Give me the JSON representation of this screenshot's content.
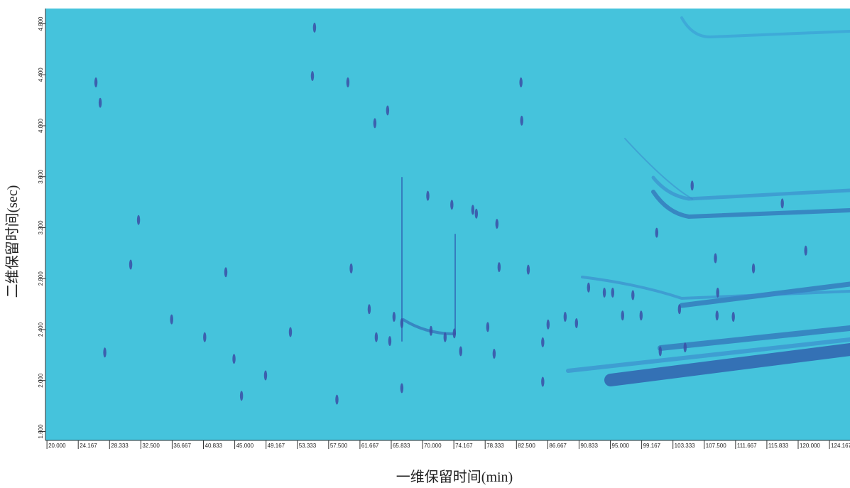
{
  "chart_data": {
    "type": "scatter",
    "xlabel": "一维保留时间(min)",
    "ylabel": "二维保留时间(sec)",
    "background": "#45c3dc",
    "color": "#3b4fa6",
    "xlim": [
      19.8,
      126.9
    ],
    "ylim": [
      1.53,
      4.92
    ],
    "xticks": [
      {
        "value": 20.0,
        "label": "20.000"
      },
      {
        "value": 24.167,
        "label": "24.167"
      },
      {
        "value": 28.333,
        "label": "28.333"
      },
      {
        "value": 32.5,
        "label": "32.500"
      },
      {
        "value": 36.667,
        "label": "36.667"
      },
      {
        "value": 40.833,
        "label": "40.833"
      },
      {
        "value": 45.0,
        "label": "45.000"
      },
      {
        "value": 49.167,
        "label": "49.167"
      },
      {
        "value": 53.333,
        "label": "53.333"
      },
      {
        "value": 57.5,
        "label": "57.500"
      },
      {
        "value": 61.667,
        "label": "61.667"
      },
      {
        "value": 65.833,
        "label": "65.833"
      },
      {
        "value": 70.0,
        "label": "70.000"
      },
      {
        "value": 74.167,
        "label": "74.167"
      },
      {
        "value": 78.333,
        "label": "78.333"
      },
      {
        "value": 82.5,
        "label": "82.500"
      },
      {
        "value": 86.667,
        "label": "86.667"
      },
      {
        "value": 90.833,
        "label": "90.833"
      },
      {
        "value": 95.0,
        "label": "95.000"
      },
      {
        "value": 99.167,
        "label": "99.167"
      },
      {
        "value": 103.333,
        "label": "103.333"
      },
      {
        "value": 107.5,
        "label": "107.500"
      },
      {
        "value": 111.667,
        "label": "111.667"
      },
      {
        "value": 115.833,
        "label": "115.833"
      },
      {
        "value": 120.0,
        "label": "120.000"
      },
      {
        "value": 124.167,
        "label": "124.167"
      }
    ],
    "yticks": [
      {
        "value": 1.6,
        "label": "1.600"
      },
      {
        "value": 2.0,
        "label": "2.000"
      },
      {
        "value": 2.4,
        "label": "2.400"
      },
      {
        "value": 2.8,
        "label": "2.800"
      },
      {
        "value": 3.2,
        "label": "3.200"
      },
      {
        "value": 3.6,
        "label": "3.600"
      },
      {
        "value": 4.0,
        "label": "4.000"
      },
      {
        "value": 4.4,
        "label": "4.400"
      },
      {
        "value": 4.8,
        "label": "4.800"
      }
    ],
    "x": [
      26.52,
      27.09,
      43.81,
      52.41,
      55.62,
      55.34,
      60.06,
      63.65,
      65.35,
      62.9,
      66.2,
      67.24,
      67.24,
      63.84,
      65.64,
      71.12,
      73.0,
      74.23,
      75.08,
      76.69,
      77.16,
      79.9,
      80.19,
      79.53,
      78.68,
      84.07,
      86.71,
      88.98,
      90.49,
      92.1,
      95.31,
      96.63,
      99.09,
      101.17,
      101.64,
      105.89,
      104.95,
      109.2,
      111.37,
      121.01,
      117.89,
      109.29,
      86.0,
      83.1,
      83.2,
      32.19,
      31.15,
      36.6,
      41.0,
      44.9,
      49.1,
      58.6,
      60.5,
      70.7,
      73.9,
      45.9,
      27.7,
      86.0,
      104.2,
      114.05,
      108.99,
      98.0,
      94.2
    ],
    "values": [
      4.34,
      4.18,
      2.85,
      2.38,
      4.77,
      4.39,
      4.34,
      4.02,
      4.12,
      2.56,
      2.5,
      2.45,
      1.94,
      2.34,
      2.31,
      2.39,
      2.34,
      2.37,
      2.23,
      3.34,
      3.31,
      3.23,
      2.89,
      2.21,
      2.42,
      2.87,
      2.44,
      2.5,
      2.45,
      2.73,
      2.69,
      2.51,
      2.51,
      3.16,
      2.23,
      3.53,
      2.26,
      2.51,
      2.5,
      3.02,
      3.39,
      2.69,
      1.99,
      4.34,
      4.04,
      3.26,
      2.91,
      2.48,
      2.34,
      2.17,
      2.04,
      1.85,
      2.88,
      3.45,
      3.38,
      1.88,
      2.22,
      2.3,
      2.56,
      2.88,
      2.96,
      2.67,
      2.69
    ]
  }
}
